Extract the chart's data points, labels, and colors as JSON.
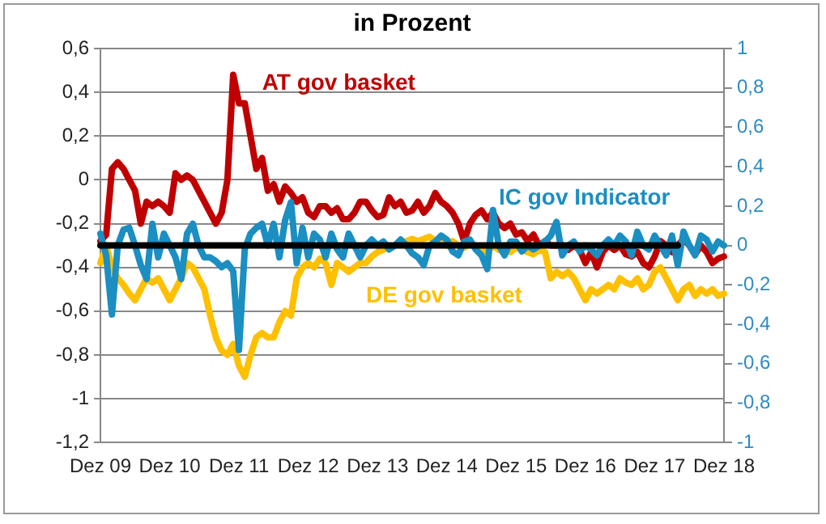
{
  "chart_data": {
    "type": "line",
    "title": "in Prozent",
    "categories": [
      "Dez 09",
      null,
      null,
      null,
      null,
      null,
      null,
      null,
      null,
      null,
      null,
      null,
      "Dez 10",
      null,
      null,
      null,
      null,
      null,
      null,
      null,
      null,
      null,
      null,
      null,
      "Dez 11",
      null,
      null,
      null,
      null,
      null,
      null,
      null,
      null,
      null,
      null,
      null,
      "Dez 12",
      null,
      null,
      null,
      null,
      null,
      null,
      null,
      null,
      null,
      null,
      null,
      "Dez 13",
      null,
      null,
      null,
      null,
      null,
      null,
      null,
      null,
      null,
      null,
      null,
      "Dez 14",
      null,
      null,
      null,
      null,
      null,
      null,
      null,
      null,
      null,
      null,
      null,
      "Dez 15",
      null,
      null,
      null,
      null,
      null,
      null,
      null,
      null,
      null,
      null,
      null,
      "Dez 16",
      null,
      null,
      null,
      null,
      null,
      null,
      null,
      null,
      null,
      null,
      null,
      "Dez 17",
      null,
      null,
      null,
      null,
      null,
      null,
      null,
      null,
      null,
      null,
      null,
      "Dez 18"
    ],
    "series": [
      {
        "name": "AT gov basket",
        "color": "#c00000",
        "values": [
          -0.28,
          -0.25,
          0.05,
          0.08,
          0.05,
          0.0,
          -0.05,
          -0.2,
          -0.1,
          -0.12,
          -0.1,
          -0.12,
          -0.15,
          0.03,
          0.0,
          0.02,
          0.0,
          -0.05,
          -0.1,
          -0.15,
          -0.2,
          -0.15,
          0.0,
          0.48,
          0.35,
          0.35,
          0.2,
          0.05,
          0.1,
          -0.05,
          -0.02,
          -0.1,
          -0.03,
          -0.06,
          -0.1,
          -0.08,
          -0.15,
          -0.17,
          -0.12,
          -0.12,
          -0.15,
          -0.13,
          -0.18,
          -0.18,
          -0.15,
          -0.1,
          -0.1,
          -0.14,
          -0.17,
          -0.16,
          -0.08,
          -0.12,
          -0.1,
          -0.15,
          -0.14,
          -0.1,
          -0.15,
          -0.12,
          -0.06,
          -0.1,
          -0.12,
          -0.15,
          -0.2,
          -0.28,
          -0.2,
          -0.16,
          -0.14,
          -0.18,
          -0.15,
          -0.2,
          -0.22,
          -0.2,
          -0.25,
          -0.24,
          -0.28,
          -0.25,
          -0.3,
          -0.28,
          -0.3,
          -0.3,
          -0.3,
          -0.32,
          -0.3,
          -0.32,
          -0.38,
          -0.33,
          -0.4,
          -0.33,
          -0.3,
          -0.32,
          -0.3,
          -0.34,
          -0.35,
          -0.33,
          -0.38,
          -0.4,
          -0.35,
          -0.28,
          -0.3,
          -0.33,
          -0.3,
          -0.27,
          -0.3,
          -0.34,
          -0.3,
          -0.33,
          -0.38,
          -0.36,
          -0.35
        ]
      },
      {
        "name": "DE gov basket",
        "color": "#ffc000",
        "values": [
          -0.38,
          -0.3,
          -0.4,
          -0.45,
          -0.48,
          -0.52,
          -0.55,
          -0.5,
          -0.45,
          -0.47,
          -0.45,
          -0.5,
          -0.55,
          -0.5,
          -0.45,
          -0.38,
          -0.4,
          -0.45,
          -0.5,
          -0.62,
          -0.72,
          -0.78,
          -0.8,
          -0.75,
          -0.85,
          -0.9,
          -0.8,
          -0.72,
          -0.7,
          -0.72,
          -0.72,
          -0.65,
          -0.6,
          -0.62,
          -0.45,
          -0.4,
          -0.38,
          -0.4,
          -0.36,
          -0.38,
          -0.48,
          -0.38,
          -0.4,
          -0.42,
          -0.4,
          -0.38,
          -0.38,
          -0.35,
          -0.33,
          -0.32,
          -0.3,
          null,
          -0.29,
          -0.28,
          -0.27,
          -0.28,
          -0.27,
          -0.26,
          -0.28,
          -0.27,
          -0.3,
          -0.28,
          -0.3,
          -0.31,
          -0.29,
          -0.3,
          -0.32,
          -0.33,
          -0.3,
          -0.32,
          -0.3,
          -0.33,
          -0.31,
          -0.32,
          -0.33,
          -0.34,
          -0.32,
          -0.33,
          -0.45,
          -0.42,
          -0.44,
          -0.42,
          -0.45,
          -0.5,
          -0.55,
          -0.5,
          -0.52,
          -0.5,
          -0.48,
          -0.5,
          -0.45,
          -0.47,
          -0.48,
          -0.45,
          -0.5,
          -0.48,
          -0.42,
          -0.4,
          -0.45,
          -0.5,
          -0.55,
          -0.5,
          -0.48,
          -0.53,
          -0.5,
          -0.52,
          -0.5,
          -0.53,
          -0.52
        ]
      },
      {
        "name": "IC gov Indicator",
        "color": "#1b8ec2",
        "axis": "y2",
        "values": [
          0.06,
          -0.05,
          -0.35,
          0.0,
          0.08,
          0.09,
          0.0,
          -0.1,
          -0.17,
          0.11,
          -0.06,
          0.06,
          0.0,
          -0.06,
          -0.17,
          0.06,
          0.11,
          0.0,
          -0.06,
          -0.06,
          -0.08,
          -0.11,
          -0.09,
          -0.13,
          -0.53,
          -0.02,
          0.06,
          0.09,
          0.11,
          0.0,
          0.11,
          -0.06,
          0.13,
          0.22,
          -0.09,
          0.09,
          -0.06,
          0.06,
          0.03,
          -0.06,
          0.06,
          -0.02,
          -0.06,
          0.06,
          0.0,
          -0.06,
          0.0,
          0.03,
          0.0,
          0.02,
          -0.02,
          0.0,
          0.03,
          0.0,
          -0.04,
          -0.06,
          -0.1,
          0.0,
          0.02,
          0.05,
          0.03,
          -0.03,
          -0.05,
          0.02,
          0.03,
          -0.02,
          -0.05,
          -0.12,
          0.18,
          0.0,
          -0.05,
          0.02,
          0.02,
          -0.03,
          0.0,
          -0.02,
          0.0,
          0.02,
          0.05,
          0.12,
          -0.05,
          0.0,
          0.02,
          -0.03,
          0.0,
          -0.02,
          -0.05,
          0.0,
          0.03,
          0.0,
          0.05,
          0.02,
          -0.05,
          0.07,
          0.0,
          -0.02,
          0.05,
          0.0,
          -0.05,
          0.05,
          -0.1,
          0.07,
          0.0,
          -0.05,
          0.05,
          0.03,
          -0.03,
          0.02,
          0.0
        ]
      },
      {
        "color": "#000000",
        "axis": "y2",
        "values": [
          0,
          0,
          0,
          0,
          0,
          0,
          0,
          0,
          0,
          0,
          0,
          0,
          0,
          0,
          0,
          0,
          0,
          0,
          0,
          0,
          0,
          0,
          0,
          0,
          0,
          0,
          0,
          0,
          0,
          0,
          0,
          0,
          0,
          0,
          0,
          0,
          0,
          0,
          0,
          0,
          0,
          0,
          0,
          0,
          0,
          0,
          0,
          0,
          0,
          0,
          0,
          0,
          0,
          0,
          0,
          0,
          0,
          0,
          0,
          0,
          0,
          0,
          0,
          0,
          0,
          0,
          0,
          0,
          0,
          0,
          0,
          0,
          0,
          0,
          0,
          0,
          0,
          0,
          0,
          0,
          0,
          0,
          0,
          0,
          0,
          0,
          0,
          0,
          0,
          0,
          0,
          0,
          0,
          0,
          0,
          0,
          0,
          0,
          0,
          0,
          0,
          null,
          null,
          null,
          null,
          null,
          null,
          null,
          null
        ]
      }
    ],
    "ylim": [
      -1.2,
      0.6
    ],
    "yticks": [
      {
        "value": -1.2,
        "label": "-1,2"
      },
      {
        "value": -1,
        "label": "-1"
      },
      {
        "value": -0.8,
        "label": "-0,8"
      },
      {
        "value": -0.6,
        "label": "-0,6"
      },
      {
        "value": -0.4,
        "label": "-0,4"
      },
      {
        "value": -0.2,
        "label": "-0,2"
      },
      {
        "value": 0,
        "label": "0"
      },
      {
        "value": 0.2,
        "label": "0,2"
      },
      {
        "value": 0.4,
        "label": "0,4"
      },
      {
        "value": 0.6,
        "label": "0,6"
      }
    ],
    "y2lim": [
      -1,
      1
    ],
    "y2ticks": [
      {
        "value": -1,
        "label": "-1"
      },
      {
        "value": -0.8,
        "label": "-0,8"
      },
      {
        "value": -0.6,
        "label": "-0,6"
      },
      {
        "value": -0.4,
        "label": "-0,4"
      },
      {
        "value": -0.2,
        "label": "-0,2"
      },
      {
        "value": 0,
        "label": "0"
      },
      {
        "value": 0.2,
        "label": "0,2"
      },
      {
        "value": 0.4,
        "label": "0,4"
      },
      {
        "value": 0.6,
        "label": "0,6"
      },
      {
        "value": 0.8,
        "label": "0,8"
      },
      {
        "value": 1,
        "label": "1"
      }
    ],
    "grid": "y",
    "legend": false,
    "marker": "none",
    "line_style": "solid"
  }
}
